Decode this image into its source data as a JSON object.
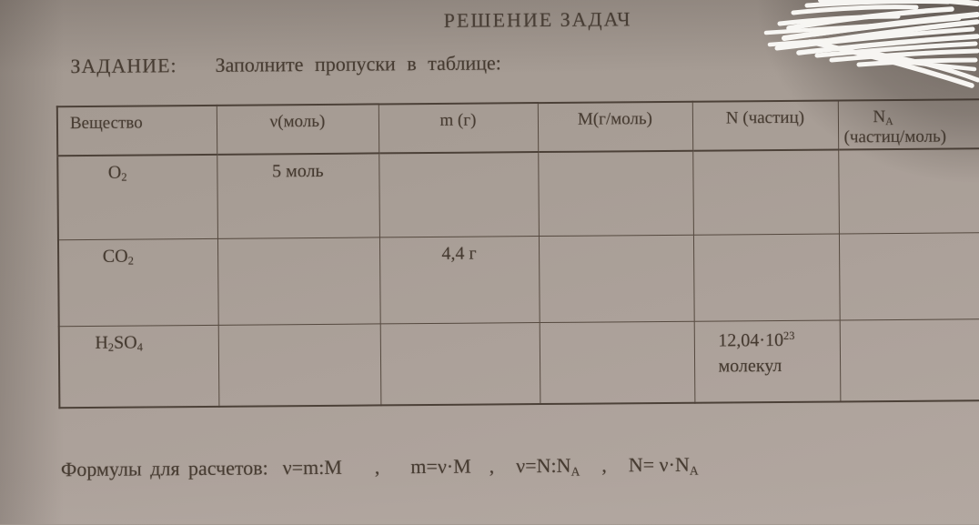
{
  "colors": {
    "paper": "#aba19a",
    "ink": "#45392f",
    "table_line": "#55493f",
    "scribble": "#fbfaf7"
  },
  "header": {
    "title": "РЕШЕНИЕ ЗАДАЧ"
  },
  "task": {
    "label": "ЗАДАНИЕ:",
    "text": "Заполните пропуски в таблице:"
  },
  "table": {
    "headers": [
      {
        "line1": "Вещество",
        "line2": ""
      },
      {
        "line1": "ν(моль)",
        "line2": ""
      },
      {
        "line1": "m (г)",
        "line2": ""
      },
      {
        "line1": "М(г/моль)",
        "line2": ""
      },
      {
        "line1": "N (частиц)",
        "line2": ""
      },
      {
        "line1": "N_{A}",
        "line2": "(частиц/моль)"
      }
    ],
    "rows": [
      {
        "cells": [
          "O_{2}",
          "5 моль",
          "",
          "",
          "",
          ""
        ]
      },
      {
        "cells": [
          "CO_{2}",
          "",
          "4,4 г",
          "",
          "",
          ""
        ]
      },
      {
        "cells": [
          "H_{2}SO_{4}",
          "",
          "",
          "",
          "12,04·10^{23} молекул",
          ""
        ]
      }
    ]
  },
  "formulas": {
    "label": "Формулы для расчетов:",
    "separator": ",",
    "items": [
      "ν=m:M",
      "m=ν·M",
      "ν=N:N_{A}",
      "N= ν·N_{A}"
    ]
  }
}
